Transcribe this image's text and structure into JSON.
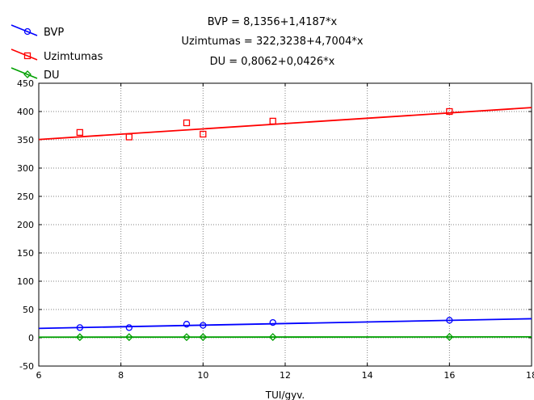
{
  "chart_data": {
    "type": "scatter",
    "xlabel": "TUI/gyv.",
    "ylabel": "",
    "xlim": [
      6,
      18
    ],
    "ylim": [
      -50,
      450
    ],
    "x_ticks": [
      6,
      8,
      10,
      12,
      14,
      16,
      18
    ],
    "y_ticks": [
      -50,
      0,
      50,
      100,
      150,
      200,
      250,
      300,
      350,
      400,
      450
    ],
    "grid": true,
    "legend_position": "top-left",
    "equations": [
      "BVP = 8,1356+1,4187*x",
      "Uzimtumas = 322,3238+4,7004*x",
      "DU = 0,8062+0,0426*x"
    ],
    "series": [
      {
        "name": "BVP",
        "marker": "circle",
        "color": "#0000ff",
        "intercept": 8.1356,
        "slope": 1.4187,
        "points": [
          [
            7,
            18
          ],
          [
            8.2,
            18
          ],
          [
            9.6,
            24
          ],
          [
            10,
            22
          ],
          [
            11.7,
            27
          ],
          [
            16,
            31
          ]
        ]
      },
      {
        "name": "Uzimtumas",
        "marker": "square",
        "color": "#ff0000",
        "intercept": 322.3238,
        "slope": 4.7004,
        "points": [
          [
            7,
            363
          ],
          [
            8.2,
            355
          ],
          [
            9.6,
            380
          ],
          [
            10,
            360
          ],
          [
            11.7,
            383
          ],
          [
            16,
            400
          ]
        ]
      },
      {
        "name": "DU",
        "marker": "diamond",
        "color": "#00a000",
        "intercept": 0.8062,
        "slope": 0.0426,
        "points": [
          [
            7,
            1.1
          ],
          [
            8.2,
            1.2
          ],
          [
            9.6,
            1.2
          ],
          [
            10,
            1.2
          ],
          [
            11.7,
            1.3
          ],
          [
            16,
            1.5
          ]
        ]
      }
    ]
  }
}
